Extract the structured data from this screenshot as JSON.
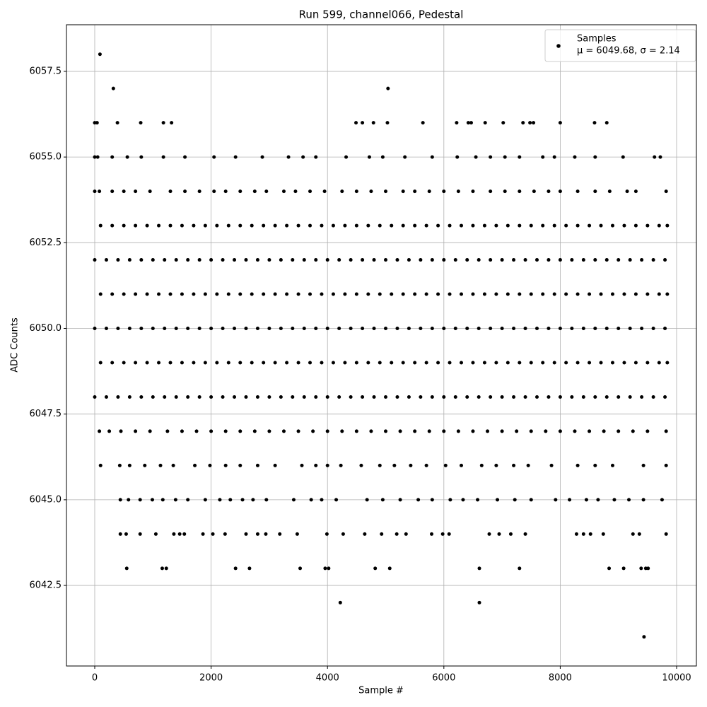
{
  "chart_data": {
    "type": "scatter",
    "title": "Run 599, channel066, Pedestal",
    "x_label": "Sample #",
    "y_label": "ADC Counts",
    "legend_note": "μ = 6049.68, σ = 2.14",
    "legend_position": "upper right",
    "grid": true,
    "xlim": [
      -486,
      10340
    ],
    "ylim": [
      6040.15,
      6058.86
    ],
    "xticks": [
      0,
      2000,
      4000,
      6000,
      8000,
      10000
    ],
    "yticks": [
      6042.5,
      {
        "value": 6045,
        "label": "6045.0"
      },
      6047.5,
      {
        "value": 6050,
        "label": "6050.0"
      },
      6052.5,
      {
        "value": 6055,
        "label": "6055.0"
      },
      6057.5
    ],
    "x": [
      90,
      320,
      5040,
      0,
      40,
      390,
      790,
      1180,
      1320,
      4490,
      4600,
      4790,
      5030,
      5640,
      6220,
      6420,
      6470,
      6710,
      7020,
      7360,
      7480,
      7540,
      8000,
      8590,
      8800,
      0,
      50,
      300,
      560,
      800,
      1180,
      1550,
      2050,
      2420,
      2880,
      3330,
      3580,
      3800,
      4320,
      4720,
      4950,
      5330,
      5800,
      6230,
      6550,
      6800,
      7050,
      7300,
      7700,
      7900,
      8250,
      8600,
      9080,
      9620,
      9720,
      0,
      80,
      300,
      500,
      700,
      950,
      1300,
      1550,
      1800,
      2050,
      2250,
      2500,
      2750,
      2950,
      3250,
      3450,
      3700,
      3950,
      4250,
      4500,
      4750,
      5000,
      5300,
      5500,
      5750,
      6000,
      6250,
      6500,
      6800,
      7050,
      7300,
      7550,
      7800,
      8000,
      8300,
      8600,
      8850,
      9150,
      9300,
      9820,
      100,
      300,
      500,
      700,
      900,
      1100,
      1300,
      1500,
      1700,
      1900,
      2100,
      2300,
      2500,
      2700,
      2900,
      3100,
      3300,
      3500,
      3700,
      3900,
      4100,
      4300,
      4500,
      4700,
      4900,
      5100,
      5300,
      5500,
      5700,
      5900,
      6100,
      6300,
      6500,
      6700,
      6900,
      7100,
      7300,
      7500,
      7700,
      7900,
      8100,
      8300,
      8500,
      8700,
      8900,
      9100,
      9300,
      9500,
      9700,
      9840,
      0,
      200,
      400,
      600,
      800,
      1000,
      1200,
      1400,
      1600,
      1800,
      2000,
      2200,
      2400,
      2600,
      2800,
      3000,
      3200,
      3400,
      3600,
      3800,
      4000,
      4200,
      4400,
      4600,
      4800,
      5000,
      5200,
      5400,
      5600,
      5800,
      6000,
      6200,
      6400,
      6600,
      6800,
      7000,
      7200,
      7400,
      7600,
      7800,
      8000,
      8200,
      8400,
      8600,
      8800,
      9000,
      9200,
      9400,
      9600,
      9800,
      100,
      300,
      500,
      700,
      900,
      1100,
      1300,
      1500,
      1700,
      1900,
      2100,
      2300,
      2500,
      2700,
      2900,
      3100,
      3300,
      3500,
      3700,
      3900,
      4100,
      4300,
      4500,
      4700,
      4900,
      5100,
      5300,
      5500,
      5700,
      5900,
      6100,
      6300,
      6500,
      6700,
      6900,
      7100,
      7300,
      7500,
      7700,
      7900,
      8100,
      8300,
      8500,
      8700,
      8900,
      9100,
      9300,
      9500,
      9700,
      9840,
      0,
      200,
      400,
      600,
      800,
      1000,
      1200,
      1400,
      1600,
      1800,
      2000,
      2200,
      2400,
      2600,
      2800,
      3000,
      3200,
      3400,
      3600,
      3800,
      4000,
      4200,
      4400,
      4600,
      4800,
      5000,
      5200,
      5400,
      5600,
      5800,
      6000,
      6200,
      6400,
      6600,
      6800,
      7000,
      7200,
      7400,
      7600,
      7800,
      8000,
      8200,
      8400,
      8600,
      8800,
      9000,
      9200,
      9400,
      9600,
      9800,
      100,
      300,
      500,
      700,
      900,
      1100,
      1300,
      1500,
      1700,
      1900,
      2100,
      2300,
      2500,
      2700,
      2900,
      3100,
      3300,
      3500,
      3700,
      3900,
      4100,
      4300,
      4500,
      4700,
      4900,
      5100,
      5300,
      5500,
      5700,
      5900,
      6100,
      6300,
      6500,
      6700,
      6900,
      7100,
      7300,
      7500,
      7700,
      7900,
      8100,
      8300,
      8500,
      8700,
      8900,
      9100,
      9300,
      9500,
      9700,
      9840,
      0,
      200,
      400,
      600,
      800,
      1000,
      1200,
      1400,
      1600,
      1800,
      2000,
      2200,
      2400,
      2600,
      2800,
      3000,
      3200,
      3400,
      3600,
      3800,
      4000,
      4200,
      4400,
      4600,
      4800,
      5000,
      5200,
      5400,
      5600,
      5800,
      6000,
      6200,
      6400,
      6600,
      6800,
      7000,
      7200,
      7400,
      7600,
      7800,
      8000,
      8200,
      8400,
      8600,
      8800,
      9000,
      9200,
      9400,
      9600,
      9800,
      80,
      250,
      450,
      700,
      950,
      1250,
      1500,
      1750,
      2000,
      2250,
      2500,
      2750,
      3000,
      3250,
      3500,
      3750,
      4000,
      4250,
      4500,
      4750,
      5000,
      5250,
      5500,
      5750,
      6000,
      6250,
      6500,
      6750,
      7000,
      7250,
      7500,
      7750,
      8000,
      8250,
      8500,
      8750,
      9000,
      9250,
      9500,
      9820,
      100,
      430,
      600,
      860,
      1130,
      1350,
      1720,
      1980,
      2250,
      2500,
      2800,
      3100,
      3560,
      3800,
      4000,
      4230,
      4580,
      4900,
      5150,
      5430,
      5700,
      6030,
      6300,
      6650,
      6900,
      7200,
      7450,
      7850,
      8300,
      8600,
      8900,
      9430,
      9820,
      440,
      580,
      780,
      990,
      1170,
      1390,
      1600,
      1900,
      2150,
      2330,
      2540,
      2720,
      2950,
      3420,
      3720,
      3900,
      4150,
      4680,
      4950,
      5250,
      5560,
      5800,
      6110,
      6330,
      6580,
      6920,
      7220,
      7500,
      7920,
      8160,
      8450,
      8650,
      8930,
      9180,
      9430,
      9750,
      440,
      540,
      780,
      1050,
      1360,
      1460,
      1540,
      1860,
      2030,
      2240,
      2600,
      2800,
      2940,
      3180,
      3480,
      3990,
      4270,
      4640,
      4930,
      5190,
      5350,
      5790,
      5980,
      6090,
      6780,
      6950,
      7150,
      7400,
      8280,
      8400,
      8520,
      8740,
      9250,
      9360,
      9820,
      550,
      1160,
      1230,
      2420,
      2660,
      3530,
      3960,
      4020,
      4820,
      5070,
      6610,
      7300,
      8840,
      9090,
      9390,
      9470,
      9510,
      4220,
      6610,
      9440
    ],
    "series": [
      {
        "name": "Samples",
        "color": "#000000",
        "values": [
          6058,
          6057,
          6057,
          6056,
          6056,
          6056,
          6056,
          6056,
          6056,
          6056,
          6056,
          6056,
          6056,
          6056,
          6056,
          6056,
          6056,
          6056,
          6056,
          6056,
          6056,
          6056,
          6056,
          6056,
          6056,
          6055,
          6055,
          6055,
          6055,
          6055,
          6055,
          6055,
          6055,
          6055,
          6055,
          6055,
          6055,
          6055,
          6055,
          6055,
          6055,
          6055,
          6055,
          6055,
          6055,
          6055,
          6055,
          6055,
          6055,
          6055,
          6055,
          6055,
          6055,
          6055,
          6055,
          6054,
          6054,
          6054,
          6054,
          6054,
          6054,
          6054,
          6054,
          6054,
          6054,
          6054,
          6054,
          6054,
          6054,
          6054,
          6054,
          6054,
          6054,
          6054,
          6054,
          6054,
          6054,
          6054,
          6054,
          6054,
          6054,
          6054,
          6054,
          6054,
          6054,
          6054,
          6054,
          6054,
          6054,
          6054,
          6054,
          6054,
          6054,
          6054,
          6054,
          6053,
          6053,
          6053,
          6053,
          6053,
          6053,
          6053,
          6053,
          6053,
          6053,
          6053,
          6053,
          6053,
          6053,
          6053,
          6053,
          6053,
          6053,
          6053,
          6053,
          6053,
          6053,
          6053,
          6053,
          6053,
          6053,
          6053,
          6053,
          6053,
          6053,
          6053,
          6053,
          6053,
          6053,
          6053,
          6053,
          6053,
          6053,
          6053,
          6053,
          6053,
          6053,
          6053,
          6053,
          6053,
          6053,
          6053,
          6053,
          6053,
          6053,
          6052,
          6052,
          6052,
          6052,
          6052,
          6052,
          6052,
          6052,
          6052,
          6052,
          6052,
          6052,
          6052,
          6052,
          6052,
          6052,
          6052,
          6052,
          6052,
          6052,
          6052,
          6052,
          6052,
          6052,
          6052,
          6052,
          6052,
          6052,
          6052,
          6052,
          6052,
          6052,
          6052,
          6052,
          6052,
          6052,
          6052,
          6052,
          6052,
          6052,
          6052,
          6052,
          6052,
          6052,
          6052,
          6052,
          6052,
          6052,
          6052,
          6052,
          6051,
          6051,
          6051,
          6051,
          6051,
          6051,
          6051,
          6051,
          6051,
          6051,
          6051,
          6051,
          6051,
          6051,
          6051,
          6051,
          6051,
          6051,
          6051,
          6051,
          6051,
          6051,
          6051,
          6051,
          6051,
          6051,
          6051,
          6051,
          6051,
          6051,
          6051,
          6051,
          6051,
          6051,
          6051,
          6051,
          6051,
          6051,
          6051,
          6051,
          6051,
          6051,
          6051,
          6051,
          6051,
          6051,
          6051,
          6051,
          6051,
          6051,
          6050,
          6050,
          6050,
          6050,
          6050,
          6050,
          6050,
          6050,
          6050,
          6050,
          6050,
          6050,
          6050,
          6050,
          6050,
          6050,
          6050,
          6050,
          6050,
          6050,
          6050,
          6050,
          6050,
          6050,
          6050,
          6050,
          6050,
          6050,
          6050,
          6050,
          6050,
          6050,
          6050,
          6050,
          6050,
          6050,
          6050,
          6050,
          6050,
          6050,
          6050,
          6050,
          6050,
          6050,
          6050,
          6050,
          6050,
          6050,
          6050,
          6050,
          6049,
          6049,
          6049,
          6049,
          6049,
          6049,
          6049,
          6049,
          6049,
          6049,
          6049,
          6049,
          6049,
          6049,
          6049,
          6049,
          6049,
          6049,
          6049,
          6049,
          6049,
          6049,
          6049,
          6049,
          6049,
          6049,
          6049,
          6049,
          6049,
          6049,
          6049,
          6049,
          6049,
          6049,
          6049,
          6049,
          6049,
          6049,
          6049,
          6049,
          6049,
          6049,
          6049,
          6049,
          6049,
          6049,
          6049,
          6049,
          6049,
          6049,
          6048,
          6048,
          6048,
          6048,
          6048,
          6048,
          6048,
          6048,
          6048,
          6048,
          6048,
          6048,
          6048,
          6048,
          6048,
          6048,
          6048,
          6048,
          6048,
          6048,
          6048,
          6048,
          6048,
          6048,
          6048,
          6048,
          6048,
          6048,
          6048,
          6048,
          6048,
          6048,
          6048,
          6048,
          6048,
          6048,
          6048,
          6048,
          6048,
          6048,
          6048,
          6048,
          6048,
          6048,
          6048,
          6048,
          6048,
          6048,
          6048,
          6048,
          6047,
          6047,
          6047,
          6047,
          6047,
          6047,
          6047,
          6047,
          6047,
          6047,
          6047,
          6047,
          6047,
          6047,
          6047,
          6047,
          6047,
          6047,
          6047,
          6047,
          6047,
          6047,
          6047,
          6047,
          6047,
          6047,
          6047,
          6047,
          6047,
          6047,
          6047,
          6047,
          6047,
          6047,
          6047,
          6047,
          6047,
          6047,
          6047,
          6047,
          6046,
          6046,
          6046,
          6046,
          6046,
          6046,
          6046,
          6046,
          6046,
          6046,
          6046,
          6046,
          6046,
          6046,
          6046,
          6046,
          6046,
          6046,
          6046,
          6046,
          6046,
          6046,
          6046,
          6046,
          6046,
          6046,
          6046,
          6046,
          6046,
          6046,
          6046,
          6046,
          6046,
          6045,
          6045,
          6045,
          6045,
          6045,
          6045,
          6045,
          6045,
          6045,
          6045,
          6045,
          6045,
          6045,
          6045,
          6045,
          6045,
          6045,
          6045,
          6045,
          6045,
          6045,
          6045,
          6045,
          6045,
          6045,
          6045,
          6045,
          6045,
          6045,
          6045,
          6045,
          6045,
          6045,
          6045,
          6045,
          6045,
          6044,
          6044,
          6044,
          6044,
          6044,
          6044,
          6044,
          6044,
          6044,
          6044,
          6044,
          6044,
          6044,
          6044,
          6044,
          6044,
          6044,
          6044,
          6044,
          6044,
          6044,
          6044,
          6044,
          6044,
          6044,
          6044,
          6044,
          6044,
          6044,
          6044,
          6044,
          6044,
          6044,
          6044,
          6044,
          6043,
          6043,
          6043,
          6043,
          6043,
          6043,
          6043,
          6043,
          6043,
          6043,
          6043,
          6043,
          6043,
          6043,
          6043,
          6043,
          6043,
          6042,
          6042,
          6041
        ]
      }
    ]
  }
}
